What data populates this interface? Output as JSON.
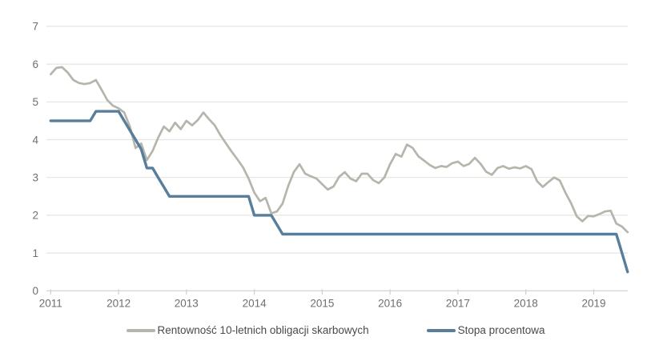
{
  "chart_data": {
    "type": "line",
    "title": "",
    "x_axis": {
      "tick_labels": [
        "2011",
        "2012",
        "2013",
        "2014",
        "2015",
        "2016",
        "2017",
        "2018",
        "2019"
      ],
      "start_year": 2011,
      "points_per_year": 12,
      "x_range": [
        2011.0,
        2019.5
      ]
    },
    "y_axis": {
      "min": 0,
      "max": 7,
      "tick_step": 1,
      "tick_labels": [
        "0",
        "1",
        "2",
        "3",
        "4",
        "5",
        "6",
        "7"
      ]
    },
    "grid": true,
    "legend_position": "bottom-center",
    "colors": {
      "grid_line": "#e4e4e3",
      "baseline": "#cfcfce",
      "axis_text": "#6f6f6f",
      "legend_text": "#4a4a4a"
    },
    "series": [
      {
        "name": "Rentowność 10-letnich obligacji skarbowych",
        "color": "#b5b5ab",
        "stroke_width": 2.7,
        "values": [
          5.73,
          5.9,
          5.92,
          5.78,
          5.58,
          5.5,
          5.47,
          5.5,
          5.58,
          5.32,
          5.05,
          4.9,
          4.83,
          4.72,
          4.35,
          3.78,
          3.9,
          3.46,
          3.7,
          4.05,
          4.35,
          4.22,
          4.45,
          4.28,
          4.5,
          4.38,
          4.52,
          4.72,
          4.54,
          4.38,
          4.12,
          3.9,
          3.68,
          3.48,
          3.27,
          2.97,
          2.6,
          2.37,
          2.46,
          2.05,
          2.1,
          2.31,
          2.78,
          3.15,
          3.35,
          3.1,
          3.03,
          2.97,
          2.82,
          2.68,
          2.76,
          3.02,
          3.14,
          2.97,
          2.9,
          3.1,
          3.1,
          2.93,
          2.85,
          3.0,
          3.35,
          3.62,
          3.55,
          3.87,
          3.78,
          3.56,
          3.45,
          3.33,
          3.25,
          3.3,
          3.28,
          3.38,
          3.42,
          3.3,
          3.36,
          3.52,
          3.36,
          3.15,
          3.07,
          3.25,
          3.3,
          3.23,
          3.27,
          3.24,
          3.3,
          3.22,
          2.9,
          2.75,
          2.88,
          3.0,
          2.92,
          2.6,
          2.32,
          1.97,
          1.84,
          1.98,
          1.97,
          2.03,
          2.1,
          2.12,
          1.78,
          1.7,
          1.55
        ]
      },
      {
        "name": "Stopa procentowa",
        "color": "#587e9c",
        "stroke_width": 3.4,
        "values": [
          4.5,
          4.5,
          4.5,
          4.5,
          4.5,
          4.5,
          4.5,
          4.5,
          4.75,
          4.75,
          4.75,
          4.75,
          4.75,
          4.5,
          4.25,
          4.0,
          3.75,
          3.25,
          3.25,
          3.0,
          2.75,
          2.5,
          2.5,
          2.5,
          2.5,
          2.5,
          2.5,
          2.5,
          2.5,
          2.5,
          2.5,
          2.5,
          2.5,
          2.5,
          2.5,
          2.5,
          2.0,
          2.0,
          2.0,
          2.0,
          1.75,
          1.5,
          1.5,
          1.5,
          1.5,
          1.5,
          1.5,
          1.5,
          1.5,
          1.5,
          1.5,
          1.5,
          1.5,
          1.5,
          1.5,
          1.5,
          1.5,
          1.5,
          1.5,
          1.5,
          1.5,
          1.5,
          1.5,
          1.5,
          1.5,
          1.5,
          1.5,
          1.5,
          1.5,
          1.5,
          1.5,
          1.5,
          1.5,
          1.5,
          1.5,
          1.5,
          1.5,
          1.5,
          1.5,
          1.5,
          1.5,
          1.5,
          1.5,
          1.5,
          1.5,
          1.5,
          1.5,
          1.5,
          1.5,
          1.5,
          1.5,
          1.5,
          1.5,
          1.5,
          1.5,
          1.5,
          1.5,
          1.5,
          1.5,
          1.5,
          1.5,
          1.0,
          0.5
        ]
      }
    ]
  }
}
